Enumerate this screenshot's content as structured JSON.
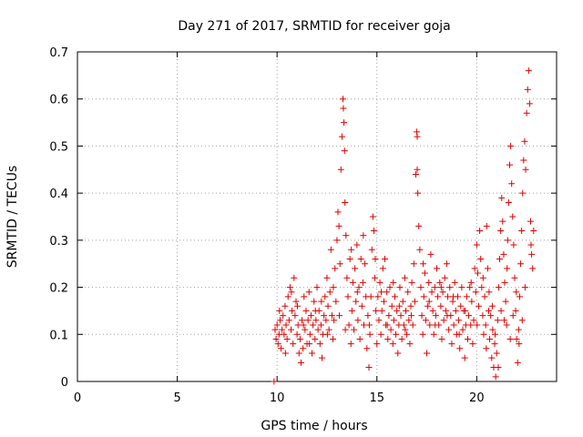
{
  "chart_data": {
    "type": "scatter",
    "title": "Day 271 of 2017, SRMTID for receiver goja",
    "xlabel": "GPS time / hours",
    "ylabel": "SRMTID / TECUs",
    "xlim": [
      0,
      24
    ],
    "ylim": [
      0,
      0.7
    ],
    "x_ticks": [
      0,
      5,
      10,
      15,
      20
    ],
    "x_tick_labels": [
      "0",
      "5",
      "10",
      "15",
      "20"
    ],
    "y_ticks": [
      0,
      0.1,
      0.2,
      0.3,
      0.4,
      0.5,
      0.6,
      0.7
    ],
    "y_tick_labels": [
      "0",
      "0.1",
      "0.2",
      "0.3",
      "0.4",
      "0.5",
      "0.6",
      "0.7"
    ],
    "grid": true,
    "marker_color": "#e00000",
    "marker": "plus",
    "series": [
      {
        "name": "SRMTID",
        "points": [
          [
            9.85,
            0.0
          ],
          [
            9.9,
            0.11
          ],
          [
            9.95,
            0.09
          ],
          [
            10.0,
            0.12
          ],
          [
            10.05,
            0.08
          ],
          [
            10.1,
            0.1
          ],
          [
            10.15,
            0.13
          ],
          [
            10.2,
            0.07
          ],
          [
            10.25,
            0.11
          ],
          [
            10.3,
            0.14
          ],
          [
            10.35,
            0.1
          ],
          [
            10.4,
            0.16
          ],
          [
            10.45,
            0.12
          ],
          [
            10.5,
            0.09
          ],
          [
            10.55,
            0.18
          ],
          [
            10.6,
            0.13
          ],
          [
            10.65,
            0.2
          ],
          [
            10.7,
            0.11
          ],
          [
            10.75,
            0.15
          ],
          [
            10.8,
            0.08
          ],
          [
            10.85,
            0.22
          ],
          [
            10.9,
            0.14
          ],
          [
            10.95,
            0.17
          ],
          [
            11.0,
            0.1
          ],
          [
            11.05,
            0.12
          ],
          [
            11.1,
            0.06
          ],
          [
            11.15,
            0.09
          ],
          [
            11.2,
            0.04
          ],
          [
            11.25,
            0.13
          ],
          [
            11.3,
            0.07
          ],
          [
            11.35,
            0.18
          ],
          [
            11.4,
            0.11
          ],
          [
            11.45,
            0.15
          ],
          [
            11.5,
            0.08
          ],
          [
            11.55,
            0.13
          ],
          [
            11.6,
            0.19
          ],
          [
            11.65,
            0.1
          ],
          [
            11.7,
            0.14
          ],
          [
            11.75,
            0.06
          ],
          [
            11.8,
            0.12
          ],
          [
            11.85,
            0.17
          ],
          [
            11.9,
            0.09
          ],
          [
            11.95,
            0.13
          ],
          [
            12.0,
            0.2
          ],
          [
            12.05,
            0.11
          ],
          [
            12.1,
            0.15
          ],
          [
            12.15,
            0.08
          ],
          [
            12.2,
            0.12
          ],
          [
            12.25,
            0.05
          ],
          [
            12.3,
            0.1
          ],
          [
            12.35,
            0.14
          ],
          [
            12.4,
            0.18
          ],
          [
            12.45,
            0.13
          ],
          [
            12.5,
            0.22
          ],
          [
            12.55,
            0.16
          ],
          [
            12.6,
            0.11
          ],
          [
            12.65,
            0.19
          ],
          [
            12.7,
            0.28
          ],
          [
            12.75,
            0.14
          ],
          [
            12.8,
            0.09
          ],
          [
            12.85,
            0.13
          ],
          [
            12.9,
            0.24
          ],
          [
            12.95,
            0.17
          ],
          [
            13.0,
            0.3
          ],
          [
            13.05,
            0.36
          ],
          [
            13.1,
            0.33
          ],
          [
            13.15,
            0.25
          ],
          [
            13.2,
            0.45
          ],
          [
            13.25,
            0.52
          ],
          [
            13.3,
            0.6
          ],
          [
            13.32,
            0.58
          ],
          [
            13.35,
            0.55
          ],
          [
            13.38,
            0.49
          ],
          [
            13.4,
            0.38
          ],
          [
            13.45,
            0.31
          ],
          [
            13.5,
            0.22
          ],
          [
            13.55,
            0.18
          ],
          [
            13.6,
            0.12
          ],
          [
            13.65,
            0.26
          ],
          [
            13.7,
            0.08
          ],
          [
            13.75,
            0.15
          ],
          [
            13.8,
            0.21
          ],
          [
            13.85,
            0.11
          ],
          [
            13.9,
            0.24
          ],
          [
            13.95,
            0.17
          ],
          [
            14.0,
            0.29
          ],
          [
            14.05,
            0.13
          ],
          [
            14.1,
            0.2
          ],
          [
            14.15,
            0.09
          ],
          [
            14.2,
            0.26
          ],
          [
            14.25,
            0.16
          ],
          [
            14.3,
            0.21
          ],
          [
            14.35,
            0.12
          ],
          [
            14.4,
            0.25
          ],
          [
            14.45,
            0.18
          ],
          [
            14.5,
            0.07
          ],
          [
            14.55,
            0.14
          ],
          [
            14.6,
            0.03
          ],
          [
            14.65,
            0.1
          ],
          [
            14.7,
            0.18
          ],
          [
            14.75,
            0.28
          ],
          [
            14.8,
            0.35
          ],
          [
            14.85,
            0.32
          ],
          [
            14.9,
            0.22
          ],
          [
            14.95,
            0.15
          ],
          [
            15.0,
            0.08
          ],
          [
            15.05,
            0.18
          ],
          [
            15.1,
            0.13
          ],
          [
            15.15,
            0.21
          ],
          [
            15.2,
            0.1
          ],
          [
            15.25,
            0.15
          ],
          [
            15.3,
            0.24
          ],
          [
            15.35,
            0.17
          ],
          [
            15.4,
            0.26
          ],
          [
            15.45,
            0.12
          ],
          [
            15.5,
            0.19
          ],
          [
            15.55,
            0.09
          ],
          [
            15.6,
            0.14
          ],
          [
            15.65,
            0.2
          ],
          [
            15.7,
            0.11
          ],
          [
            15.75,
            0.16
          ],
          [
            15.8,
            0.08
          ],
          [
            15.85,
            0.13
          ],
          [
            15.9,
            0.18
          ],
          [
            15.95,
            0.1
          ],
          [
            16.0,
            0.15
          ],
          [
            16.05,
            0.06
          ],
          [
            16.1,
            0.12
          ],
          [
            16.15,
            0.2
          ],
          [
            16.2,
            0.14
          ],
          [
            16.25,
            0.09
          ],
          [
            16.3,
            0.17
          ],
          [
            16.35,
            0.12
          ],
          [
            16.4,
            0.22
          ],
          [
            16.45,
            0.15
          ],
          [
            16.5,
            0.1
          ],
          [
            16.55,
            0.19
          ],
          [
            16.6,
            0.13
          ],
          [
            16.65,
            0.08
          ],
          [
            16.7,
            0.16
          ],
          [
            16.75,
            0.21
          ],
          [
            16.8,
            0.12
          ],
          [
            16.85,
            0.25
          ],
          [
            16.9,
            0.17
          ],
          [
            16.95,
            0.44
          ],
          [
            17.0,
            0.53
          ],
          [
            17.02,
            0.52
          ],
          [
            17.05,
            0.4
          ],
          [
            17.1,
            0.33
          ],
          [
            17.15,
            0.28
          ],
          [
            17.2,
            0.2
          ],
          [
            17.25,
            0.14
          ],
          [
            17.3,
            0.1
          ],
          [
            17.35,
            0.18
          ],
          [
            17.4,
            0.23
          ],
          [
            17.45,
            0.13
          ],
          [
            17.5,
            0.06
          ],
          [
            17.55,
            0.16
          ],
          [
            17.6,
            0.21
          ],
          [
            17.65,
            0.12
          ],
          [
            17.7,
            0.27
          ],
          [
            17.75,
            0.19
          ],
          [
            17.8,
            0.15
          ],
          [
            17.85,
            0.1
          ],
          [
            17.9,
            0.2
          ],
          [
            17.95,
            0.14
          ],
          [
            18.0,
            0.24
          ],
          [
            18.05,
            0.18
          ],
          [
            18.1,
            0.12
          ],
          [
            18.15,
            0.21
          ],
          [
            18.2,
            0.16
          ],
          [
            18.25,
            0.09
          ],
          [
            18.3,
            0.19
          ],
          [
            18.35,
            0.13
          ],
          [
            18.4,
            0.22
          ],
          [
            18.45,
            0.15
          ],
          [
            18.5,
            0.25
          ],
          [
            18.55,
            0.18
          ],
          [
            18.6,
            0.11
          ],
          [
            18.65,
            0.2
          ],
          [
            18.7,
            0.14
          ],
          [
            18.75,
            0.08
          ],
          [
            18.8,
            0.17
          ],
          [
            18.85,
            0.12
          ],
          [
            18.9,
            0.21
          ],
          [
            18.95,
            0.15
          ],
          [
            19.0,
            0.1
          ],
          [
            19.05,
            0.18
          ],
          [
            19.1,
            0.13
          ],
          [
            19.15,
            0.07
          ],
          [
            19.2,
            0.16
          ],
          [
            19.25,
            0.2
          ],
          [
            19.3,
            0.11
          ],
          [
            19.35,
            0.15
          ],
          [
            19.4,
            0.05
          ],
          [
            19.45,
            0.12
          ],
          [
            19.5,
            0.18
          ],
          [
            19.55,
            0.09
          ],
          [
            19.6,
            0.14
          ],
          [
            19.65,
            0.2
          ],
          [
            19.7,
            0.12
          ],
          [
            19.75,
            0.17
          ],
          [
            19.8,
            0.08
          ],
          [
            19.85,
            0.13
          ],
          [
            19.9,
            0.24
          ],
          [
            19.95,
            0.19
          ],
          [
            20.0,
            0.29
          ],
          [
            20.05,
            0.23
          ],
          [
            20.1,
            0.16
          ],
          [
            20.15,
            0.32
          ],
          [
            20.2,
            0.26
          ],
          [
            20.25,
            0.2
          ],
          [
            20.3,
            0.14
          ],
          [
            20.35,
            0.1
          ],
          [
            20.4,
            0.18
          ],
          [
            20.45,
            0.12
          ],
          [
            20.5,
            0.33
          ],
          [
            20.55,
            0.24
          ],
          [
            20.6,
            0.15
          ],
          [
            20.65,
            0.09
          ],
          [
            20.7,
            0.14
          ],
          [
            20.75,
            0.05
          ],
          [
            20.8,
            0.11
          ],
          [
            20.85,
            0.03
          ],
          [
            20.9,
            0.08
          ],
          [
            20.95,
            0.01
          ],
          [
            21.0,
            0.06
          ],
          [
            21.05,
            0.13
          ],
          [
            21.1,
            0.2
          ],
          [
            21.15,
            0.26
          ],
          [
            21.2,
            0.32
          ],
          [
            21.25,
            0.39
          ],
          [
            21.3,
            0.34
          ],
          [
            21.35,
            0.27
          ],
          [
            21.4,
            0.21
          ],
          [
            21.45,
            0.17
          ],
          [
            21.5,
            0.12
          ],
          [
            21.55,
            0.3
          ],
          [
            21.6,
            0.38
          ],
          [
            21.65,
            0.46
          ],
          [
            21.7,
            0.5
          ],
          [
            21.75,
            0.42
          ],
          [
            21.8,
            0.35
          ],
          [
            21.85,
            0.29
          ],
          [
            21.9,
            0.22
          ],
          [
            21.95,
            0.15
          ],
          [
            22.0,
            0.09
          ],
          [
            22.05,
            0.04
          ],
          [
            22.1,
            0.11
          ],
          [
            22.15,
            0.18
          ],
          [
            22.2,
            0.25
          ],
          [
            22.25,
            0.32
          ],
          [
            22.3,
            0.4
          ],
          [
            22.35,
            0.47
          ],
          [
            22.4,
            0.51
          ],
          [
            22.45,
            0.45
          ],
          [
            22.5,
            0.57
          ],
          [
            22.55,
            0.62
          ],
          [
            22.6,
            0.66
          ],
          [
            22.65,
            0.59
          ],
          [
            22.7,
            0.34
          ],
          [
            22.75,
            0.27
          ],
          [
            22.8,
            0.24
          ],
          [
            22.85,
            0.32
          ],
          [
            10.12,
            0.15
          ],
          [
            10.42,
            0.06
          ],
          [
            10.72,
            0.19
          ],
          [
            11.02,
            0.16
          ],
          [
            11.32,
            0.12
          ],
          [
            11.62,
            0.08
          ],
          [
            11.92,
            0.15
          ],
          [
            12.22,
            0.17
          ],
          [
            12.52,
            0.1
          ],
          [
            12.82,
            0.2
          ],
          [
            13.12,
            0.14
          ],
          [
            13.42,
            0.11
          ],
          [
            13.72,
            0.28
          ],
          [
            14.02,
            0.19
          ],
          [
            14.32,
            0.31
          ],
          [
            14.62,
            0.12
          ],
          [
            14.92,
            0.26
          ],
          [
            15.22,
            0.19
          ],
          [
            15.52,
            0.12
          ],
          [
            15.82,
            0.21
          ],
          [
            16.12,
            0.16
          ],
          [
            16.42,
            0.11
          ],
          [
            16.72,
            0.14
          ],
          [
            17.02,
            0.45
          ],
          [
            17.32,
            0.25
          ],
          [
            17.62,
            0.17
          ],
          [
            17.92,
            0.12
          ],
          [
            18.22,
            0.2
          ],
          [
            18.52,
            0.14
          ],
          [
            18.82,
            0.18
          ],
          [
            19.12,
            0.1
          ],
          [
            19.42,
            0.15
          ],
          [
            19.72,
            0.21
          ],
          [
            20.02,
            0.12
          ],
          [
            20.32,
            0.22
          ],
          [
            20.62,
            0.19
          ],
          [
            20.92,
            0.1
          ],
          [
            21.22,
            0.15
          ],
          [
            21.52,
            0.24
          ],
          [
            21.82,
            0.14
          ],
          [
            22.12,
            0.08
          ],
          [
            22.42,
            0.2
          ],
          [
            22.72,
            0.29
          ],
          [
            22.28,
            0.13
          ],
          [
            21.98,
            0.19
          ],
          [
            21.68,
            0.09
          ],
          [
            21.38,
            0.13
          ],
          [
            21.08,
            0.03
          ],
          [
            20.78,
            0.16
          ],
          [
            20.48,
            0.07
          ]
        ]
      }
    ]
  }
}
